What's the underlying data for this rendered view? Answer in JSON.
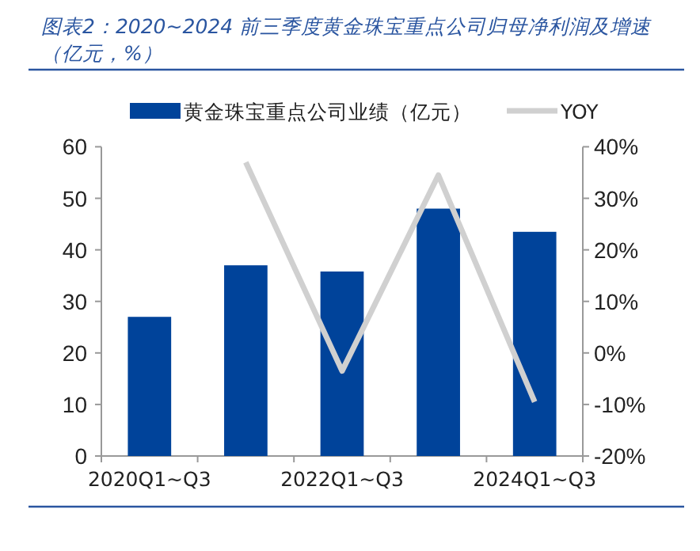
{
  "chart_data": {
    "type": "bar",
    "title": "图表2：2020~2024 前三季度黄金珠宝重点公司归母净利润及增速（亿元，%）",
    "categories": [
      "2020Q1~Q3",
      null,
      "2022Q1~Q3",
      null,
      "2024Q1~Q3"
    ],
    "series": [
      {
        "name": "黄金珠宝重点公司业绩（亿元）",
        "color": "#00439a",
        "values": [
          27,
          37,
          35.8,
          48,
          43.5
        ]
      },
      {
        "name": "YOY",
        "type": "line",
        "axis": "y2",
        "color": "#d0d0d0",
        "values": [
          null,
          37,
          -3.5,
          34.5,
          -9.5
        ]
      }
    ],
    "ylim": [
      0,
      60
    ],
    "yticks": [
      0,
      10,
      20,
      30,
      40,
      50,
      60
    ],
    "y2lim": [
      -20,
      40
    ],
    "y2ticks": [
      {
        "value": -20,
        "label": "-20%"
      },
      {
        "value": -10,
        "label": "-10%"
      },
      {
        "value": 0,
        "label": "0%"
      },
      {
        "value": 10,
        "label": "10%"
      },
      {
        "value": 20,
        "label": "20%"
      },
      {
        "value": 30,
        "label": "30%"
      },
      {
        "value": 40,
        "label": "40%"
      }
    ],
    "legend": "top",
    "grid": false
  }
}
